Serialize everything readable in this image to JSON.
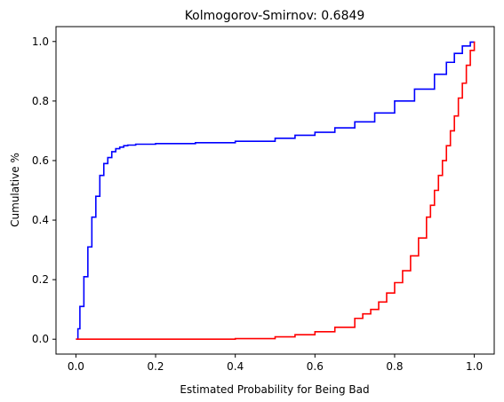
{
  "chart_data": {
    "type": "line",
    "title": "Kolmogorov-Smirnov:  0.6849",
    "xlabel": "Estimated Probability for Being Bad",
    "ylabel": "Cumulative %",
    "xlim": [
      -0.05,
      1.05
    ],
    "ylim": [
      -0.05,
      1.05
    ],
    "grid": false,
    "step": true,
    "x_ticks": [
      0.0,
      0.2,
      0.4,
      0.6,
      0.8,
      1.0
    ],
    "x_tick_labels": [
      "0.0",
      "0.2",
      "0.4",
      "0.6",
      "0.8",
      "1.0"
    ],
    "y_ticks": [
      0.0,
      0.2,
      0.4,
      0.6,
      0.8,
      1.0
    ],
    "y_tick_labels": [
      "0.0",
      "0.2",
      "0.4",
      "0.6",
      "0.8",
      "1.0"
    ],
    "series": [
      {
        "color": "#0000ff",
        "x": [
          0.0,
          0.005,
          0.01,
          0.02,
          0.03,
          0.04,
          0.05,
          0.06,
          0.07,
          0.08,
          0.09,
          0.1,
          0.11,
          0.12,
          0.13,
          0.15,
          0.2,
          0.3,
          0.4,
          0.5,
          0.55,
          0.6,
          0.65,
          0.7,
          0.75,
          0.8,
          0.85,
          0.9,
          0.93,
          0.95,
          0.97,
          0.99,
          1.0
        ],
        "y": [
          0.0,
          0.035,
          0.11,
          0.21,
          0.31,
          0.41,
          0.48,
          0.55,
          0.59,
          0.61,
          0.63,
          0.64,
          0.645,
          0.65,
          0.652,
          0.655,
          0.657,
          0.66,
          0.665,
          0.675,
          0.685,
          0.695,
          0.71,
          0.73,
          0.76,
          0.8,
          0.84,
          0.89,
          0.93,
          0.96,
          0.985,
          0.998,
          1.0
        ]
      },
      {
        "color": "#ff0000",
        "x": [
          0.0,
          0.2,
          0.4,
          0.5,
          0.55,
          0.6,
          0.65,
          0.7,
          0.72,
          0.74,
          0.76,
          0.78,
          0.8,
          0.82,
          0.84,
          0.86,
          0.88,
          0.89,
          0.9,
          0.91,
          0.92,
          0.93,
          0.94,
          0.95,
          0.96,
          0.97,
          0.98,
          0.99,
          1.0
        ],
        "y": [
          0.0,
          0.0,
          0.002,
          0.008,
          0.015,
          0.025,
          0.04,
          0.07,
          0.085,
          0.1,
          0.125,
          0.155,
          0.19,
          0.23,
          0.28,
          0.34,
          0.41,
          0.45,
          0.5,
          0.55,
          0.6,
          0.65,
          0.7,
          0.75,
          0.81,
          0.86,
          0.92,
          0.97,
          1.0
        ]
      }
    ]
  }
}
